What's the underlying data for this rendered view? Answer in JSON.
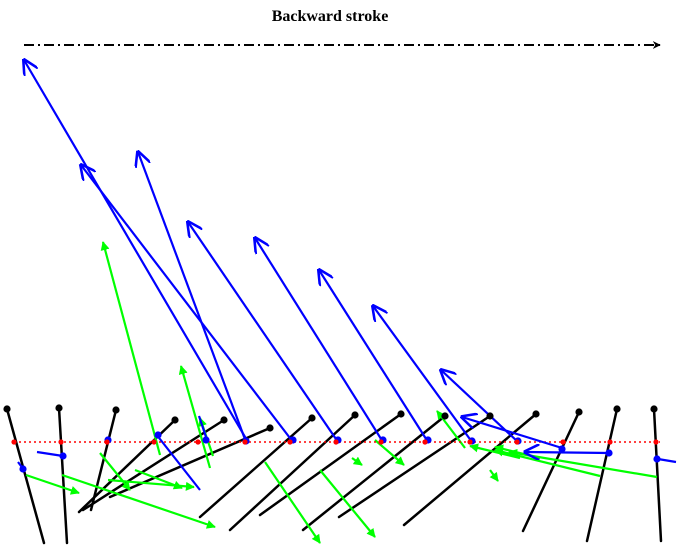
{
  "title": "Backward stroke",
  "colors": {
    "background": "#ffffff",
    "cilia": "#000000",
    "reference_line": "#ff0000",
    "blue_vectors": "#0000ff",
    "green_vectors": "#00ff00",
    "direction_arrow": "#000000"
  },
  "legend_arrow_style": "dash-dot",
  "reference_line_style": "dotted"
}
